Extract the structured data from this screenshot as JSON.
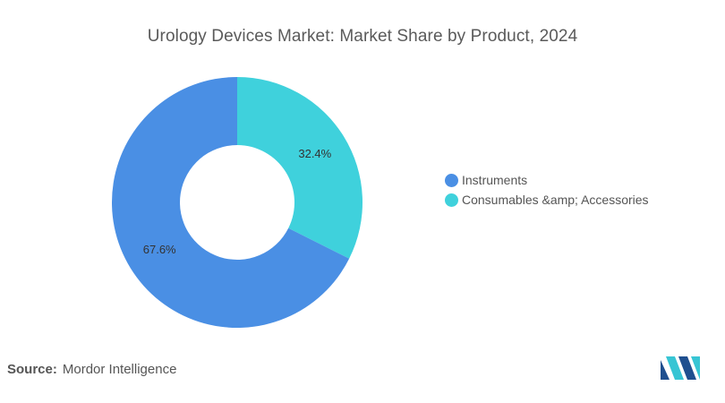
{
  "chart_data": {
    "type": "pie",
    "title": "Urology Devices Market: Market Share by Product, 2024",
    "donut": true,
    "slices": [
      {
        "name": "Instruments",
        "value": 67.6,
        "label": "67.6%",
        "color": "#4a8fe4"
      },
      {
        "name": "Consumables &amp; Accessories",
        "value": 32.4,
        "label": "32.4%",
        "color": "#3fd1dc"
      }
    ],
    "legend_position": "right"
  },
  "source": {
    "key": "Source:",
    "value": "Mordor Intelligence"
  },
  "logo": {
    "icon": "mordor-intelligence-logo-icon",
    "colors": [
      "#1f4f8f",
      "#37c5d4"
    ]
  }
}
